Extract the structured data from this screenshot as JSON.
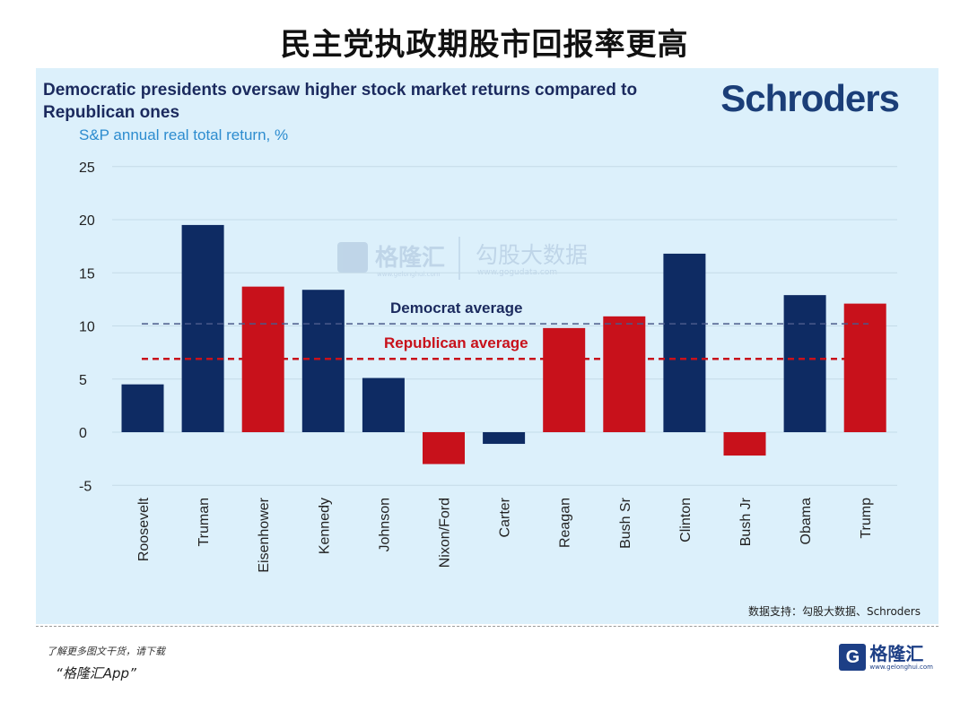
{
  "page": {
    "header_title": "民主党执政期股市回报率更高",
    "brand_logo": "Schroders",
    "source": "数据支持：勾股大数据、Schroders",
    "footer_prompt": "了解更多图文干货，请下载",
    "footer_app": "“格隆汇App”",
    "footer_logo_icon": "G",
    "footer_logo_name": "格隆汇",
    "footer_logo_url": "www.gelonghui.com",
    "watermark_left": "格隆汇",
    "watermark_left_url": "www.gelonghui.com",
    "watermark_right": "勾股大数据",
    "watermark_right_url": "www.gogudata.com"
  },
  "colors": {
    "democrat": "#0e2b63",
    "republican": "#c8111b",
    "panel_bg": "#dcf0fb",
    "title": "#1b2a5e",
    "subtitle": "#2d8ccf",
    "democrat_avg_line": "#4a5a8a",
    "republican_avg_line": "#c8111b"
  },
  "chart_data": {
    "type": "bar",
    "title": "Democratic presidents oversaw higher stock market returns compared to Republican ones",
    "subtitle": "S&P annual real total return, %",
    "categories": [
      "Roosevelt",
      "Truman",
      "Eisenhower",
      "Kennedy",
      "Johnson",
      "Nixon/Ford",
      "Carter",
      "Reagan",
      "Bush Sr",
      "Clinton",
      "Bush Jr",
      "Obama",
      "Trump"
    ],
    "values": [
      4.5,
      19.5,
      13.7,
      13.4,
      5.1,
      -3.0,
      -1.1,
      9.8,
      10.9,
      16.8,
      -2.2,
      12.9,
      12.1
    ],
    "party": [
      "D",
      "D",
      "R",
      "D",
      "D",
      "R",
      "D",
      "R",
      "R",
      "D",
      "R",
      "D",
      "R"
    ],
    "ylim": [
      -5,
      25
    ],
    "yticks": [
      25,
      20,
      15,
      10,
      5,
      0,
      -5
    ],
    "grid": true,
    "reference_lines": [
      {
        "label": "Democrat average",
        "value": 10.2,
        "party": "D"
      },
      {
        "label": "Republican average",
        "value": 6.9,
        "party": "R"
      }
    ]
  }
}
